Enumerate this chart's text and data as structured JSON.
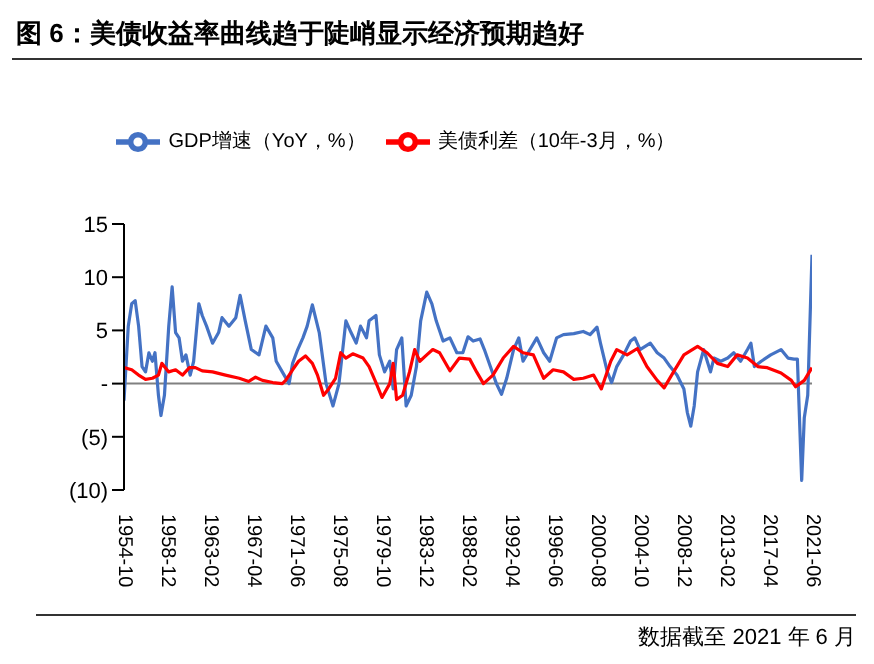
{
  "chart_data": {
    "type": "line",
    "title": "图 6：美债收益率曲线趋于陡峭显示经济预期趋好",
    "annotations": [
      "数据截至 2021 年 6 月"
    ],
    "legend": "top",
    "grid": false,
    "xlim": [
      "1954-10",
      "2021-06"
    ],
    "xticks": [
      "1954-10",
      "1958-12",
      "1963-02",
      "1967-04",
      "1971-06",
      "1975-08",
      "1979-10",
      "1983-12",
      "1988-02",
      "1992-04",
      "1996-06",
      "2000-08",
      "2004-10",
      "2008-12",
      "2013-02",
      "2017-04",
      "2021-06"
    ],
    "ylim": [
      -10,
      15
    ],
    "yticks": [
      {
        "value": -10,
        "label": "(10)"
      },
      {
        "value": -5,
        "label": "(5)"
      },
      {
        "value": 0,
        "label": "-"
      },
      5,
      10,
      15
    ],
    "ref_lines": [
      {
        "axis": "y",
        "value": 0,
        "color": "#808080"
      }
    ],
    "series": [
      {
        "name": "GDP增速（YoY，%）",
        "color": "#4472c4",
        "x": [
          "1954-10",
          "1955-03",
          "1955-07",
          "1955-11",
          "1956-03",
          "1956-07",
          "1956-11",
          "1957-03",
          "1957-07",
          "1957-10",
          "1958-02",
          "1958-05",
          "1958-09",
          "1959-02",
          "1959-06",
          "1959-10",
          "1960-02",
          "1960-06",
          "1960-10",
          "1961-03",
          "1961-07",
          "1962-01",
          "1962-05",
          "1962-10",
          "1963-05",
          "1963-12",
          "1964-04",
          "1964-12",
          "1965-08",
          "1966-01",
          "1966-07",
          "1967-02",
          "1967-11",
          "1968-07",
          "1969-03",
          "1969-07",
          "1970-02",
          "1970-10",
          "1971-02",
          "1971-08",
          "1972-02",
          "1972-07",
          "1973-01",
          "1973-09",
          "1974-05",
          "1975-01",
          "1975-08",
          "1976-04",
          "1976-10",
          "1977-04",
          "1977-09",
          "1978-04",
          "1978-07",
          "1979-03",
          "1979-07",
          "1980-01",
          "1980-07",
          "1980-11",
          "1981-03",
          "1981-09",
          "1982-02",
          "1982-08",
          "1983-02",
          "1983-07",
          "1984-02",
          "1984-08",
          "1985-01",
          "1985-09",
          "1986-05",
          "1987-01",
          "1987-08",
          "1988-02",
          "1988-08",
          "1989-04",
          "1989-09",
          "1990-04",
          "1990-11",
          "1991-05",
          "1991-11",
          "1992-07",
          "1993-01",
          "1993-06",
          "1994-02",
          "1994-10",
          "1995-06",
          "1996-01",
          "1996-09",
          "1997-05",
          "1998-05",
          "1999-04",
          "1999-12",
          "2000-08",
          "2000-12",
          "2001-08",
          "2002-01",
          "2002-07",
          "2003-03",
          "2003-11",
          "2004-04",
          "2004-10",
          "2005-10",
          "2006-06",
          "2007-02",
          "2007-09",
          "2008-05",
          "2009-01",
          "2009-05",
          "2009-09",
          "2010-01",
          "2010-05",
          "2010-12",
          "2011-08",
          "2011-12",
          "2012-08",
          "2013-04",
          "2013-11",
          "2014-07",
          "2015-03",
          "2015-07",
          "2015-11",
          "2016-07",
          "2017-06",
          "2018-06",
          "2019-02",
          "2019-09",
          "2020-01",
          "2020-06",
          "2020-09",
          "2021-01",
          "2021-06"
        ],
        "values": [
          -1.6,
          5.4,
          7.5,
          7.8,
          5.4,
          1.6,
          1.1,
          2.9,
          2.1,
          2.9,
          -1.1,
          -3.0,
          -1.1,
          5.4,
          9.1,
          4.8,
          4.3,
          2.1,
          2.7,
          0.8,
          2.1,
          7.5,
          6.4,
          5.4,
          3.8,
          4.8,
          6.2,
          5.4,
          6.2,
          8.3,
          5.9,
          3.2,
          2.7,
          5.4,
          4.3,
          2.1,
          1.1,
          0,
          1.9,
          3.2,
          4.3,
          5.4,
          7.4,
          4.8,
          0,
          -2.1,
          0,
          5.9,
          4.8,
          3.8,
          5.4,
          4.3,
          5.9,
          6.4,
          2.7,
          1.1,
          2.1,
          -0.5,
          3.2,
          4.3,
          -2.1,
          -1.1,
          1.6,
          5.9,
          8.6,
          7.5,
          5.9,
          4.0,
          4.3,
          2.9,
          2.9,
          4.4,
          4.0,
          4.2,
          3.2,
          1.6,
          0,
          -1.0,
          0.5,
          3.2,
          4.3,
          2.1,
          3.2,
          4.3,
          2.9,
          2.1,
          4.3,
          4.6,
          4.7,
          4.9,
          4.6,
          5.3,
          3.8,
          1.1,
          0.1,
          1.6,
          2.7,
          4.0,
          4.3,
          3.2,
          3.8,
          2.9,
          2.4,
          1.6,
          0.8,
          -0.5,
          -2.7,
          -4.0,
          -2.1,
          1.1,
          3.2,
          1.1,
          2.4,
          2.1,
          2.4,
          2.9,
          2.1,
          3.2,
          3.8,
          1.6,
          2.1,
          2.7,
          3.2,
          2.4,
          2.3,
          2.3,
          -9.1,
          -3.2,
          -1.1,
          12.1
        ]
      },
      {
        "name": "美债利差（10年-3月，%）",
        "color": "#ff0000",
        "x": [
          "1954-10",
          "1955-07",
          "1956-03",
          "1956-11",
          "1957-07",
          "1958-02",
          "1958-06",
          "1959-02",
          "1959-10",
          "1960-06",
          "1961-02",
          "1961-09",
          "1962-05",
          "1963-05",
          "1964-08",
          "1965-12",
          "1966-11",
          "1967-07",
          "1968-03",
          "1969-03",
          "1970-02",
          "1970-06",
          "1971-02",
          "1971-09",
          "1972-05",
          "1973-01",
          "1973-07",
          "1974-02",
          "1974-08",
          "1975-04",
          "1975-10",
          "1976-04",
          "1976-12",
          "1977-12",
          "1978-07",
          "1979-03",
          "1979-10",
          "1980-07",
          "1980-11",
          "1981-03",
          "1981-10",
          "1982-06",
          "1982-12",
          "1983-06",
          "1984-02",
          "1984-09",
          "1985-05",
          "1986-05",
          "1987-04",
          "1988-04",
          "1988-12",
          "1989-08",
          "1990-07",
          "1991-07",
          "1992-07",
          "1993-06",
          "1994-06",
          "1995-06",
          "1996-05",
          "1997-05",
          "1998-05",
          "1999-04",
          "2000-04",
          "2001-01",
          "2001-12",
          "2002-07",
          "2003-07",
          "2004-07",
          "2005-06",
          "2006-06",
          "2007-02",
          "2008-01",
          "2009-01",
          "2010-05",
          "2011-04",
          "2012-04",
          "2013-04",
          "2014-03",
          "2015-03",
          "2016-03",
          "2017-02",
          "2018-06",
          "2019-06",
          "2019-11",
          "2020-09",
          "2021-06"
        ],
        "values": [
          1.5,
          1.3,
          0.8,
          0.4,
          0.5,
          0.8,
          1.9,
          1.1,
          1.3,
          0.8,
          1.5,
          1.5,
          1.2,
          1.1,
          0.8,
          0.5,
          0.2,
          0.6,
          0.3,
          0.1,
          0,
          0.3,
          1.3,
          2.1,
          2.6,
          1.9,
          0.8,
          -1.1,
          -0.5,
          0.5,
          2.9,
          2.4,
          2.8,
          2.4,
          1.6,
          0.1,
          -1.3,
          0,
          1.9,
          -1.5,
          -1.1,
          1.1,
          3.2,
          2.1,
          2.7,
          3.2,
          2.9,
          1.2,
          2.4,
          2.3,
          1.1,
          0,
          0.8,
          2.4,
          3.5,
          2.9,
          2.7,
          0.5,
          1.3,
          1.1,
          0.4,
          0.5,
          0.8,
          -0.5,
          2.1,
          3.2,
          2.7,
          3.3,
          1.6,
          0.3,
          -0.4,
          1.1,
          2.7,
          3.5,
          2.9,
          1.9,
          1.6,
          2.7,
          2.4,
          1.6,
          1.5,
          1.0,
          0.3,
          -0.3,
          0.3,
          1.5
        ]
      }
    ]
  }
}
